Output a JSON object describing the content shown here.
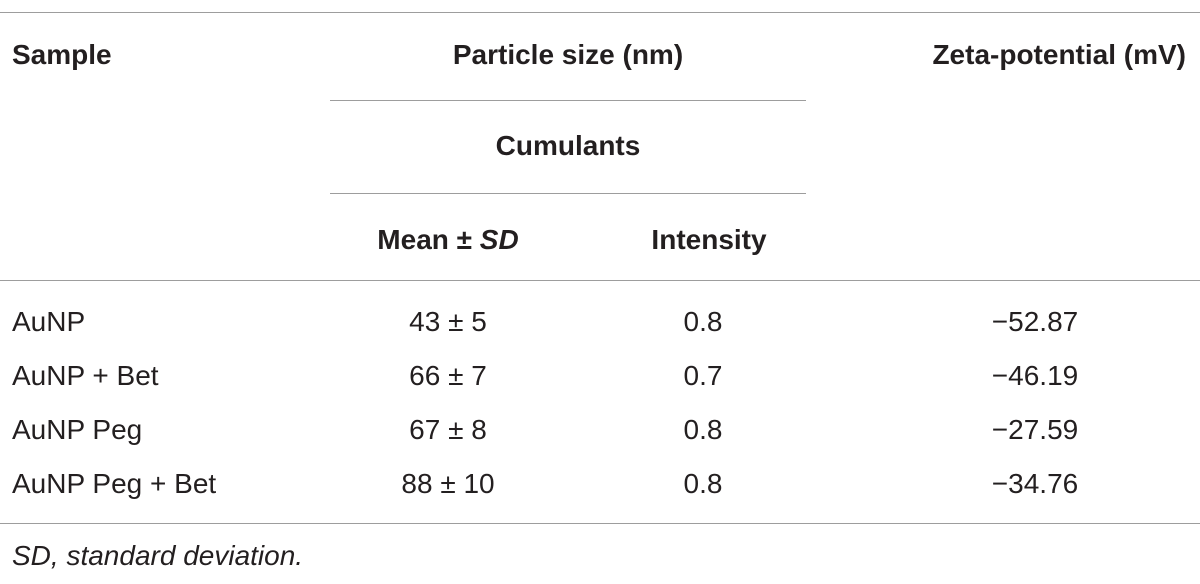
{
  "table": {
    "header": {
      "sample": "Sample",
      "particle_size": "Particle size (nm)",
      "cumulants": "Cumulants",
      "mean_sd": [
        "Mean ± ",
        "SD"
      ],
      "intensity": "Intensity",
      "zeta": "Zeta-potential (mV)"
    },
    "rows": [
      [
        "AuNP",
        "43 ± 5",
        "0.8",
        "−52.87"
      ],
      [
        "AuNP + Bet",
        "66 ± 7",
        "0.7",
        "−46.19"
      ],
      [
        "AuNP Peg",
        "67 ± 8",
        "0.8",
        "−27.59"
      ],
      [
        "AuNP Peg + Bet",
        "88 ± 10",
        "0.8",
        "−34.76"
      ]
    ],
    "footnote": "SD, standard deviation."
  }
}
